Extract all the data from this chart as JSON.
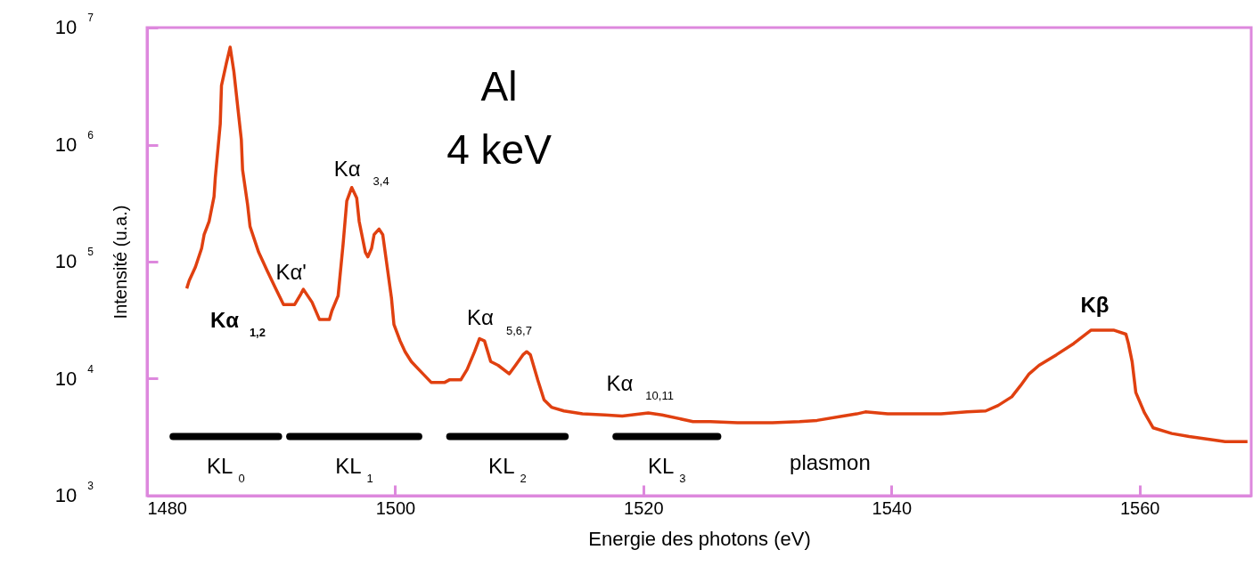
{
  "chart_data": {
    "type": "line",
    "title": "Al",
    "subtitle": "4 keV",
    "xlabel": "Energie des photons (eV)",
    "ylabel": "Intensité (u.a.)",
    "xlim": [
      1480,
      1569
    ],
    "xticks": [
      1480,
      1500,
      1520,
      1540,
      1560
    ],
    "ylim": [
      1000,
      10000000
    ],
    "log": true,
    "yticks": [
      {
        "value": 1000,
        "label": "10$^{3}$"
      },
      {
        "value": 10000,
        "label": "10$^{4}$"
      },
      {
        "value": 100000,
        "label": "10$^{5}$"
      },
      {
        "value": 1000000,
        "label": "10$^{6}$"
      },
      {
        "value": 10000000,
        "label": "10$^{7}$"
      }
    ],
    "grid": false,
    "marker": "none",
    "line_style": "solid",
    "series": [
      {
        "color": "#e04010",
        "x": [
          1483.2,
          1483.4,
          1483.9,
          1484.4,
          1484.6,
          1485.0,
          1485.4,
          1485.5,
          1485.9,
          1486.0,
          1486.4,
          1486.7,
          1487.0,
          1487.6,
          1487.7,
          1488.1,
          1488.3,
          1489.0,
          1489.7,
          1490.3,
          1491.0,
          1491.9,
          1492.4,
          1492.6,
          1493.3,
          1493.9,
          1494.7,
          1494.9,
          1495.4,
          1495.8,
          1496.1,
          1496.5,
          1496.9,
          1497.1,
          1497.6,
          1497.8,
          1498.1,
          1498.3,
          1498.7,
          1499.0,
          1499.7,
          1499.9,
          1500.4,
          1500.8,
          1501.3,
          1501.9,
          1502.9,
          1504.0,
          1504.4,
          1505.3,
          1505.8,
          1506.4,
          1506.8,
          1507.2,
          1507.7,
          1508.3,
          1509.2,
          1509.7,
          1510.3,
          1510.6,
          1510.9,
          1511.5,
          1512.0,
          1512.6,
          1513.6,
          1515.1,
          1516.9,
          1518.3,
          1520.4,
          1521.5,
          1524.0,
          1525.4,
          1527.6,
          1530.4,
          1532.6,
          1534.0,
          1536.1,
          1537.2,
          1537.9,
          1539.7,
          1544.0,
          1546.1,
          1547.6,
          1548.6,
          1549.7,
          1550.4,
          1551.1,
          1551.9,
          1553.3,
          1554.7,
          1556.1,
          1557.9,
          1558.9,
          1559.1,
          1559.4,
          1559.7,
          1560.4,
          1561.1,
          1562.6,
          1564.0,
          1566.9,
          1568.7
        ],
        "values": [
          59000,
          69000,
          90000,
          130000,
          170000,
          220000,
          360000,
          520000,
          1500000,
          3200000,
          5000000,
          6800000,
          4200000,
          1100000,
          610000,
          310000,
          200000,
          120000,
          83000,
          61000,
          43000,
          43000,
          53000,
          58000,
          45000,
          32000,
          32000,
          38000,
          51000,
          140000,
          330000,
          430000,
          350000,
          220000,
          120000,
          110000,
          130000,
          170000,
          190000,
          170000,
          49000,
          29000,
          21000,
          17000,
          14000,
          12000,
          9300,
          9300,
          9800,
          9800,
          12000,
          17000,
          22000,
          21000,
          14000,
          13000,
          11000,
          13000,
          16000,
          17000,
          16000,
          9700,
          6600,
          5700,
          5300,
          5000,
          4900,
          4800,
          5100,
          4900,
          4300,
          4300,
          4200,
          4200,
          4300,
          4400,
          4800,
          5000,
          5200,
          5000,
          5000,
          5200,
          5300,
          5900,
          7000,
          8700,
          11000,
          13000,
          16000,
          20000,
          26000,
          26000,
          24000,
          20000,
          14000,
          7600,
          5100,
          3800,
          3400,
          3200,
          2900,
          2900
        ]
      },
      {
        "name": "KL$_{0}$",
        "color": "#000000",
        "x": [
          1482.1,
          1490.6
        ],
        "values": [
          3200,
          3200
        ]
      },
      {
        "name": "KL$_{1}$",
        "color": "#000000",
        "x": [
          1491.5,
          1501.9
        ],
        "values": [
          3200,
          3200
        ]
      },
      {
        "name": "KL$_{2}$",
        "color": "#000000",
        "x": [
          1504.4,
          1513.7
        ],
        "values": [
          3200,
          3200
        ]
      },
      {
        "name": "KL$_{3}$",
        "color": "#000000",
        "x": [
          1517.8,
          1526.0
        ],
        "values": [
          3200,
          3200
        ]
      }
    ],
    "annotations": [
      "Kα$_{1,2}$",
      {
        "text": "Kα'",
        "x": 1492.6,
        "y": 58000
      },
      {
        "text": "Kα$_{3,4}$",
        "x": 1496.5,
        "y": 430000
      },
      {
        "text": "Kα$_{5,6,7}$",
        "x": 1506.8,
        "y": 22000
      },
      {
        "text": "Kα$_{10,11}$",
        "x": 1520.4,
        "y": 5100
      },
      {
        "text": "Kβ",
        "x": 1557.9,
        "y": 26000
      },
      {
        "text": "plasmon",
        "x": 1537.9,
        "y": 5200
      }
    ]
  }
}
